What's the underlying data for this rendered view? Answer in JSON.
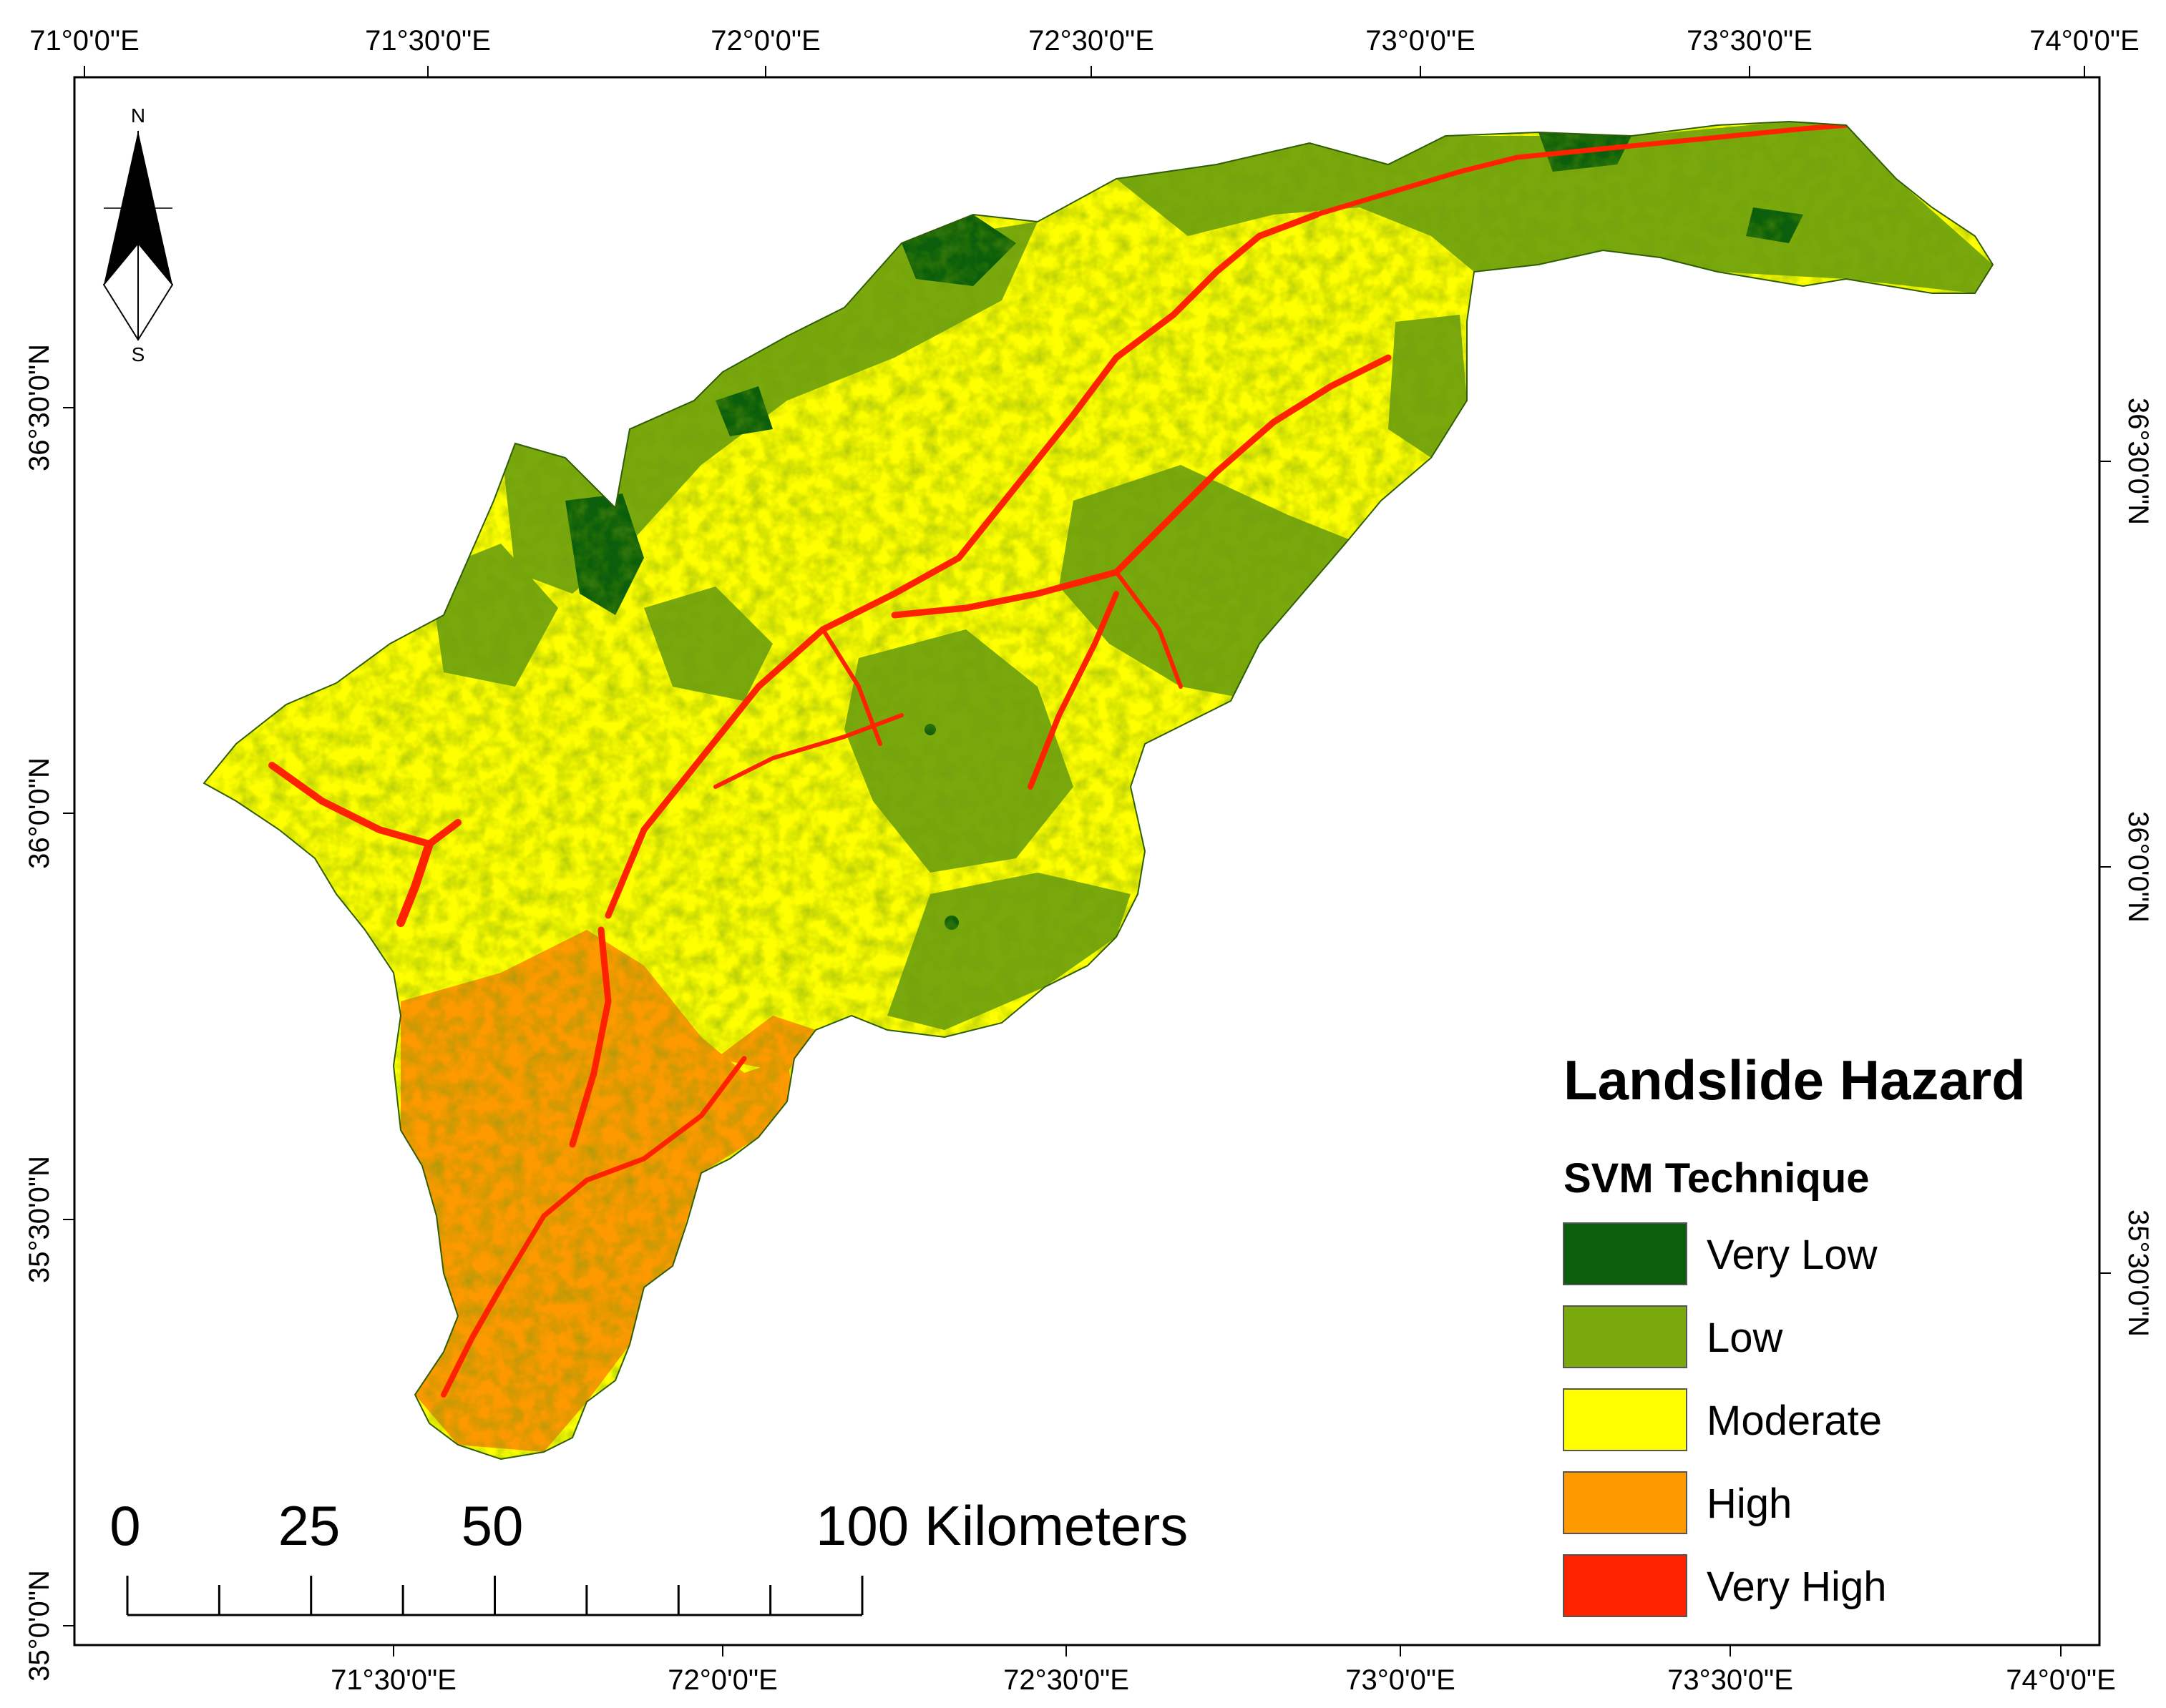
{
  "axes": {
    "top_ticks": [
      "71°0'0\"E",
      "71°30'0\"E",
      "72°0'0\"E",
      "72°30'0\"E",
      "73°0'0\"E",
      "73°30'0\"E",
      "74°0'0\"E"
    ],
    "bottom_ticks": [
      "71°30'0\"E",
      "72°0'0\"E",
      "72°30'0\"E",
      "73°0'0\"E",
      "73°30'0\"E",
      "74°0'0\"E"
    ],
    "left_ticks": [
      "36°30'0\"N",
      "36°0'0\"N",
      "35°30'0\"N",
      "35°0'0\"N"
    ],
    "right_ticks": [
      "36°30'0\"N",
      "36°0'0\"N",
      "35°30'0\"N"
    ]
  },
  "north_arrow": {
    "north_label": "N",
    "south_label": "S",
    "icon": "north-arrow-icon"
  },
  "legend": {
    "title": "Landslide Hazard",
    "subtitle": "SVM Technique",
    "items": [
      {
        "label": "Very Low",
        "color": "#0b5e0b"
      },
      {
        "label": "Low",
        "color": "#7aa90e"
      },
      {
        "label": "Moderate",
        "color": "#ffff00"
      },
      {
        "label": "High",
        "color": "#ff9900"
      },
      {
        "label": "Very High",
        "color": "#ff2200"
      }
    ]
  },
  "scale_bar": {
    "labels": [
      "0",
      "25",
      "50",
      "100 Kilometers"
    ]
  },
  "map_colors": {
    "frame": "#000000",
    "background": "#ffffff"
  }
}
